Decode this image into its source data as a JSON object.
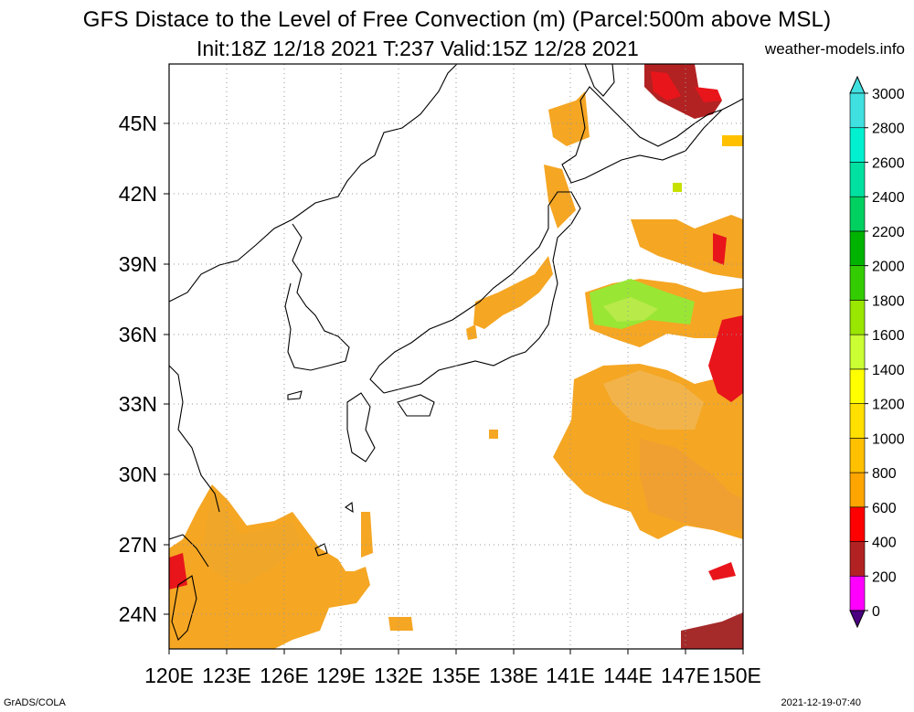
{
  "title": {
    "line1": "GFS Distace to the Level of Free Convection (m) (Parcel:500m above MSL)",
    "line2": "Init:18Z 12/18 2021 T:237 Valid:15Z 12/28 2021",
    "site": "weather-models.info"
  },
  "map": {
    "lon_range": [
      120,
      150
    ],
    "lat_range": [
      22.5,
      48
    ],
    "lon_ticks": [
      "120E",
      "123E",
      "126E",
      "129E",
      "132E",
      "135E",
      "138E",
      "141E",
      "144E",
      "147E",
      "150E"
    ],
    "lat_ticks": [
      "24N",
      "27N",
      "30N",
      "33N",
      "36N",
      "39N",
      "42N",
      "45N"
    ],
    "grid": "dotted"
  },
  "colorbar": {
    "labels": [
      "0",
      "200",
      "400",
      "600",
      "800",
      "1000",
      "1200",
      "1400",
      "1600",
      "1800",
      "2000",
      "2200",
      "2400",
      "2600",
      "2800",
      "3000"
    ],
    "colors": [
      "#4b0082",
      "#ff00ff",
      "#b22222",
      "#ff0000",
      "#ffa500",
      "#ffc000",
      "#ffe000",
      "#ffff00",
      "#ccff33",
      "#99e600",
      "#33cc00",
      "#00b300",
      "#00d060",
      "#00e0a0",
      "#00f0d0",
      "#40e0e0"
    ]
  },
  "footer": {
    "left": "GrADS/COLA",
    "right": "2021-12-19-07:40"
  }
}
